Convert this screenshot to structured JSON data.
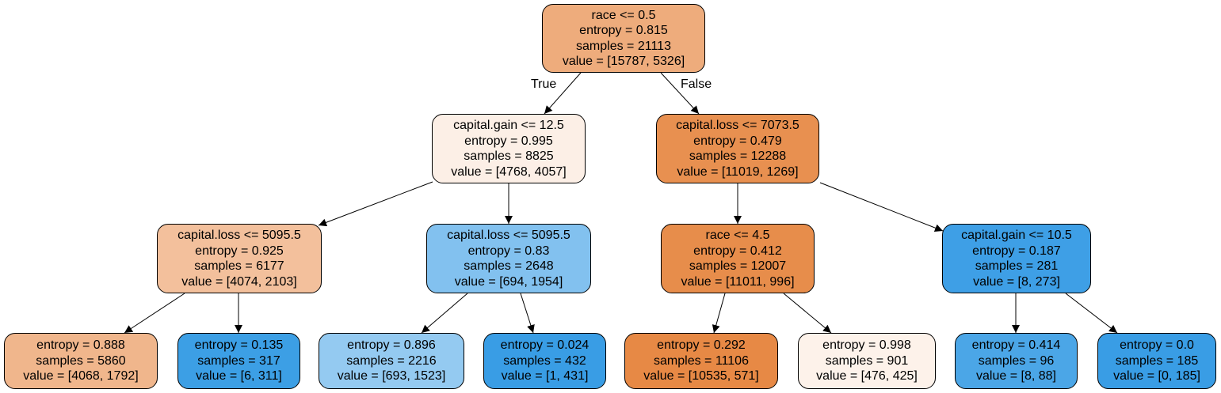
{
  "nodes": [
    {
      "id": "n0",
      "color": "#eeac7c",
      "lines": [
        "race <= 0.5",
        "entropy = 0.815",
        "samples = 21113",
        "value = [15787, 5326]"
      ]
    },
    {
      "id": "n1",
      "color": "#fcefe6",
      "lines": [
        "capital.gain <= 12.5",
        "entropy = 0.995",
        "samples = 8825",
        "value = [4768, 4057]"
      ]
    },
    {
      "id": "n2",
      "color": "#e89050",
      "lines": [
        "capital.loss <= 7073.5",
        "entropy = 0.479",
        "samples = 12288",
        "value = [11019, 1269]"
      ]
    },
    {
      "id": "n3",
      "color": "#f3c09c",
      "lines": [
        "capital.loss <= 5095.5",
        "entropy = 0.925",
        "samples = 6177",
        "value = [4074, 2103]"
      ]
    },
    {
      "id": "n4",
      "color": "#82c1ef",
      "lines": [
        "capital.loss <= 5095.5",
        "entropy = 0.83",
        "samples = 2648",
        "value = [694, 1954]"
      ]
    },
    {
      "id": "n5",
      "color": "#e78d4b",
      "lines": [
        "race <= 4.5",
        "entropy = 0.412",
        "samples = 12007",
        "value = [11011, 996]"
      ]
    },
    {
      "id": "n6",
      "color": "#3e9fe6",
      "lines": [
        "capital.gain <= 10.5",
        "entropy = 0.187",
        "samples = 281",
        "value = [8, 273]"
      ]
    },
    {
      "id": "n7",
      "color": "#f0b68c",
      "lines": [
        "entropy = 0.888",
        "samples = 5860",
        "value = [4068, 1792]"
      ]
    },
    {
      "id": "n8",
      "color": "#3c9fe5",
      "lines": [
        "entropy = 0.135",
        "samples = 317",
        "value = [6, 311]"
      ]
    },
    {
      "id": "n9",
      "color": "#94caf1",
      "lines": [
        "entropy = 0.896",
        "samples = 2216",
        "value = [693, 1523]"
      ]
    },
    {
      "id": "n10",
      "color": "#399de5",
      "lines": [
        "entropy = 0.024",
        "samples = 432",
        "value = [1, 431]"
      ]
    },
    {
      "id": "n11",
      "color": "#e78945",
      "lines": [
        "entropy = 0.292",
        "samples = 11106",
        "value = [10535, 571]"
      ]
    },
    {
      "id": "n12",
      "color": "#fdf2ea",
      "lines": [
        "entropy = 0.998",
        "samples = 901",
        "value = [476, 425]"
      ]
    },
    {
      "id": "n13",
      "color": "#4ba6e7",
      "lines": [
        "entropy = 0.414",
        "samples = 96",
        "value = [8, 88]"
      ]
    },
    {
      "id": "n14",
      "color": "#399de5",
      "lines": [
        "entropy = 0.0",
        "samples = 185",
        "value = [0, 185]"
      ]
    }
  ],
  "edges": [
    {
      "from": "n0",
      "to": "n1",
      "label": "True"
    },
    {
      "from": "n0",
      "to": "n2",
      "label": "False"
    },
    {
      "from": "n1",
      "to": "n3"
    },
    {
      "from": "n1",
      "to": "n4"
    },
    {
      "from": "n2",
      "to": "n5"
    },
    {
      "from": "n2",
      "to": "n6"
    },
    {
      "from": "n3",
      "to": "n7"
    },
    {
      "from": "n3",
      "to": "n8"
    },
    {
      "from": "n4",
      "to": "n9"
    },
    {
      "from": "n4",
      "to": "n10"
    },
    {
      "from": "n5",
      "to": "n11"
    },
    {
      "from": "n5",
      "to": "n12"
    },
    {
      "from": "n6",
      "to": "n13"
    },
    {
      "from": "n6",
      "to": "n14"
    }
  ]
}
